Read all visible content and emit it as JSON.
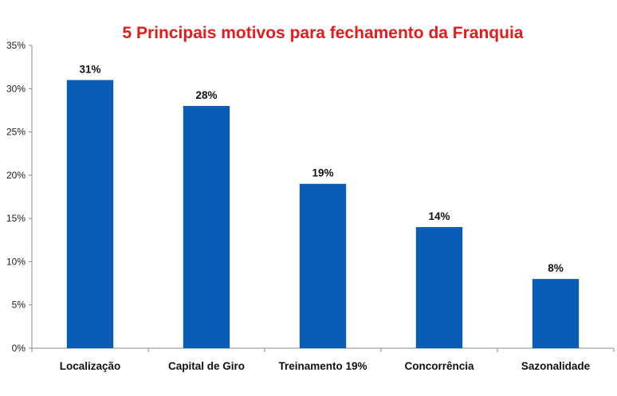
{
  "chart_data": {
    "type": "bar",
    "title": "5 Principais motivos para fechamento da Franquia",
    "categories": [
      "Localização",
      "Capital de Giro",
      "Treinamento 19%",
      "Concorrência",
      "Sazonalidade"
    ],
    "values": [
      31,
      28,
      19,
      14,
      8
    ],
    "data_labels": [
      "31%",
      "28%",
      "19%",
      "14%",
      "8%"
    ],
    "ylim": [
      0,
      35
    ],
    "yticks": [
      0,
      5,
      10,
      15,
      20,
      25,
      30,
      35
    ],
    "ytick_labels": [
      "0%",
      "5%",
      "10%",
      "15%",
      "20%",
      "25%",
      "30%",
      "35%"
    ],
    "xlabel": "",
    "ylabel": "",
    "grid": false,
    "bar_color": "#0a5db4",
    "title_color": "#e31c1c"
  }
}
